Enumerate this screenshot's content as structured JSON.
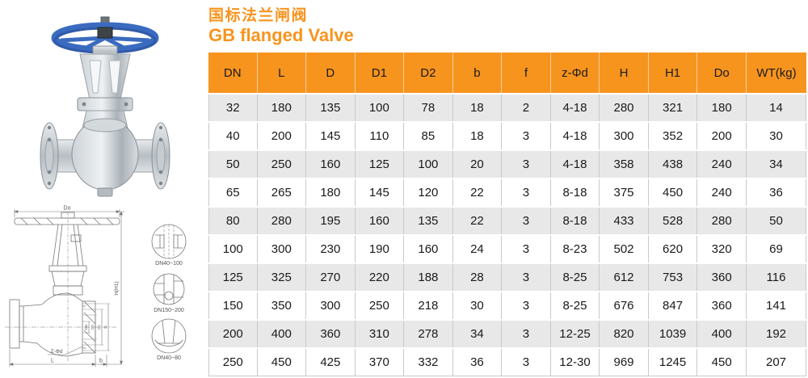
{
  "page": {
    "title_cn": "国标法兰闸阀",
    "title_en": "GB flanged Valve"
  },
  "colors": {
    "accent_orange": "#F7941E",
    "row_alt": "#E8E8E8",
    "handwheel_blue": "#3A6BC0",
    "drawing_line": "#777777"
  },
  "images": {
    "photo_name": "gate-valve-photo",
    "drawing_name": "gate-valve-dimension-drawing"
  },
  "table": {
    "columns": [
      "DN",
      "L",
      "D",
      "D1",
      "D2",
      "b",
      "f",
      "z-Φd",
      "H",
      "H1",
      "Do",
      "WT(kg)"
    ],
    "rows": [
      [
        "32",
        "180",
        "135",
        "100",
        "78",
        "18",
        "2",
        "4-18",
        "280",
        "321",
        "180",
        "14"
      ],
      [
        "40",
        "200",
        "145",
        "110",
        "85",
        "18",
        "3",
        "4-18",
        "300",
        "352",
        "200",
        "30"
      ],
      [
        "50",
        "250",
        "160",
        "125",
        "100",
        "20",
        "3",
        "4-18",
        "358",
        "438",
        "240",
        "34"
      ],
      [
        "65",
        "265",
        "180",
        "145",
        "120",
        "22",
        "3",
        "8-18",
        "375",
        "450",
        "240",
        "36"
      ],
      [
        "80",
        "280",
        "195",
        "160",
        "135",
        "22",
        "3",
        "8-18",
        "433",
        "528",
        "280",
        "50"
      ],
      [
        "100",
        "300",
        "230",
        "190",
        "160",
        "24",
        "3",
        "8-23",
        "502",
        "620",
        "320",
        "69"
      ],
      [
        "125",
        "325",
        "270",
        "220",
        "188",
        "28",
        "3",
        "8-25",
        "612",
        "753",
        "360",
        "116"
      ],
      [
        "150",
        "350",
        "300",
        "250",
        "218",
        "30",
        "3",
        "8-25",
        "676",
        "847",
        "360",
        "141"
      ],
      [
        "200",
        "400",
        "360",
        "310",
        "278",
        "34",
        "3",
        "12-25",
        "820",
        "1039",
        "400",
        "192"
      ],
      [
        "250",
        "450",
        "425",
        "370",
        "332",
        "36",
        "3",
        "12-30",
        "969",
        "1245",
        "450",
        "207"
      ]
    ]
  },
  "drawing": {
    "dim_top": "Do",
    "dim_height": "H(H1)",
    "dim_length": "L",
    "dim_b": "b",
    "dim_holes": "Z-Φd",
    "dim_nested": [
      "DN",
      "D2",
      "D1",
      "D"
    ],
    "details": [
      {
        "caption": "DN40~100"
      },
      {
        "caption": "DN150~200"
      },
      {
        "caption": "DN40~80"
      }
    ]
  }
}
